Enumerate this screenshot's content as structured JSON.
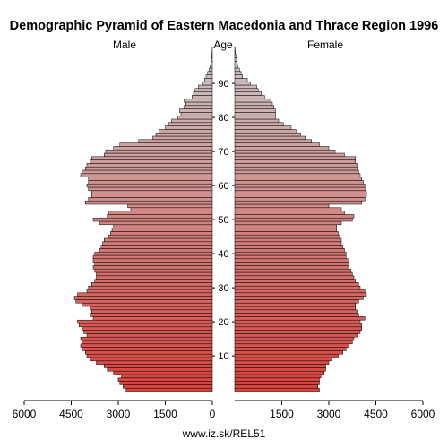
{
  "chart_data": {
    "type": "bar",
    "title": "Demographic Pyramid of Eastern Macedonia and Thrace Region 1996",
    "labels": {
      "male": "Male",
      "age": "Age",
      "female": "Female"
    },
    "source": "www.iz.sk/REL51",
    "xlim": [
      0,
      6000
    ],
    "x_ticks": [
      "6000",
      "4500",
      "3000",
      "1500",
      "0",
      "1500",
      "3000",
      "4500",
      "6000"
    ],
    "age_ticks": [
      "10",
      "20",
      "30",
      "40",
      "50",
      "60",
      "70",
      "80",
      "90"
    ],
    "grid": false,
    "colors": {
      "young": "#d9413c",
      "old": "#c9c9c9",
      "outline": "#000000"
    },
    "ages": [
      0,
      1,
      2,
      3,
      4,
      5,
      6,
      7,
      8,
      9,
      10,
      11,
      12,
      13,
      14,
      15,
      16,
      17,
      18,
      19,
      20,
      21,
      22,
      23,
      24,
      25,
      26,
      27,
      28,
      29,
      30,
      31,
      32,
      33,
      34,
      35,
      36,
      37,
      38,
      39,
      40,
      41,
      42,
      43,
      44,
      45,
      46,
      47,
      48,
      49,
      50,
      51,
      52,
      53,
      54,
      55,
      56,
      57,
      58,
      59,
      60,
      61,
      62,
      63,
      64,
      65,
      66,
      67,
      68,
      69,
      70,
      71,
      72,
      73,
      74,
      75,
      76,
      77,
      78,
      79,
      80,
      81,
      82,
      83,
      84,
      85,
      86,
      87,
      88,
      89,
      90,
      91,
      92,
      93,
      94,
      95,
      96,
      97,
      98,
      99,
      100
    ],
    "series": [
      {
        "name": "Male",
        "values": [
          2750,
          2850,
          2950,
          3000,
          2900,
          3150,
          3350,
          3450,
          3700,
          3900,
          4000,
          4050,
          4150,
          4200,
          4150,
          4200,
          4000,
          4100,
          4150,
          4250,
          4300,
          3800,
          3900,
          3850,
          3900,
          4150,
          4350,
          4400,
          4300,
          4000,
          3950,
          3850,
          3750,
          3700,
          3700,
          3750,
          3800,
          3750,
          3800,
          3800,
          3750,
          3600,
          3550,
          3500,
          3450,
          3300,
          3250,
          3200,
          3150,
          3600,
          3800,
          3350,
          3300,
          2600,
          2700,
          4050,
          3950,
          3850,
          3850,
          3950,
          4000,
          3950,
          3950,
          4200,
          4150,
          4050,
          4000,
          3900,
          3850,
          3450,
          3400,
          3150,
          2950,
          2350,
          1900,
          1800,
          1700,
          1500,
          1400,
          1300,
          1100,
          1000,
          1050,
          900,
          850,
          900,
          650,
          600,
          550,
          450,
          300,
          250,
          200,
          150,
          100,
          70,
          50,
          30,
          20,
          10,
          5
        ]
      },
      {
        "name": "Female",
        "values": [
          2700,
          2650,
          2700,
          2700,
          2750,
          2850,
          2900,
          2900,
          3000,
          3100,
          3300,
          3450,
          3550,
          3650,
          3750,
          3800,
          3900,
          4000,
          4050,
          4050,
          4000,
          4150,
          3950,
          3900,
          3850,
          3850,
          3950,
          4100,
          4200,
          4150,
          4000,
          3950,
          3850,
          3800,
          3750,
          3700,
          3650,
          3650,
          3650,
          3550,
          3550,
          3500,
          3450,
          3400,
          3400,
          3350,
          3300,
          3250,
          3250,
          3400,
          3750,
          3800,
          3500,
          3400,
          3000,
          4050,
          4150,
          4200,
          4200,
          4150,
          4150,
          4100,
          4050,
          4000,
          3950,
          3900,
          3900,
          3850,
          3850,
          3500,
          3200,
          3000,
          2700,
          2450,
          2250,
          2100,
          1950,
          1800,
          1550,
          1400,
          1300,
          1300,
          1300,
          1250,
          1200,
          1150,
          950,
          850,
          750,
          700,
          500,
          400,
          250,
          200,
          150,
          100,
          80,
          60,
          40,
          20,
          10
        ]
      }
    ]
  }
}
